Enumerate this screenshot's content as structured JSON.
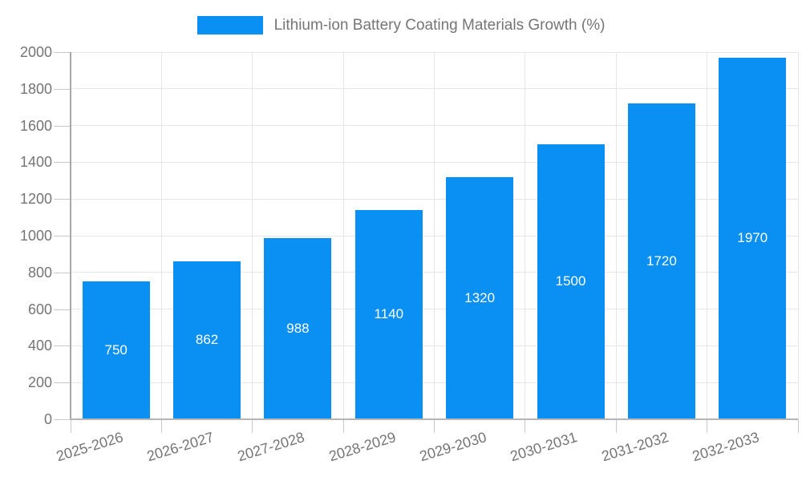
{
  "chart_data": {
    "type": "bar",
    "title": "",
    "legend": "Lithium-ion Battery Coating Materials Growth (%)",
    "legend_position": "top-center",
    "categories": [
      "2025-2026",
      "2026-2027",
      "2027-2028",
      "2028-2029",
      "2029-2030",
      "2030-2031",
      "2031-2032",
      "2032-2033"
    ],
    "values": [
      750,
      862,
      988,
      1140,
      1320,
      1500,
      1720,
      1970
    ],
    "value_labels": [
      "750",
      "862",
      "988",
      "1140",
      "1320",
      "1500",
      "1720",
      "1970"
    ],
    "xlabel": "",
    "ylabel": "",
    "ylim": [
      0,
      2000
    ],
    "ytick_step": 200,
    "ytick_labels": [
      "0",
      "200",
      "400",
      "600",
      "800",
      "1000",
      "1200",
      "1400",
      "1600",
      "1800",
      "2000"
    ],
    "grid": true,
    "legend_text_color": "#757575",
    "axis_text_color": "#757575",
    "bar_color": "#0990F2",
    "value_label_color": "#ffffff",
    "grid_color": "#e6e6e6",
    "tick_color": "#c8c8c8",
    "y_axis_line_color": "#a8a8a8",
    "x_axis_line_color": "#b5b5b5"
  }
}
